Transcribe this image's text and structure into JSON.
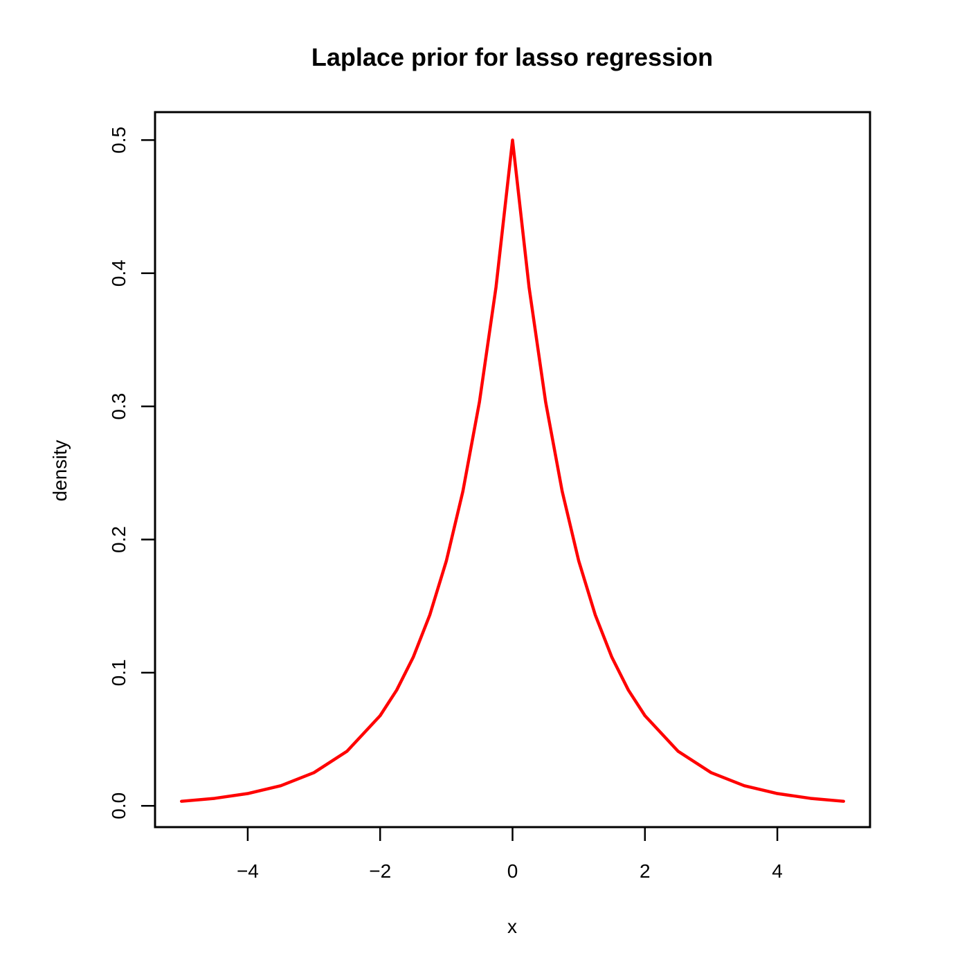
{
  "chart_data": {
    "type": "line",
    "title": "Laplace prior for lasso regression",
    "xlabel": "x",
    "ylabel": "density",
    "xlim": [
      -5.4,
      5.4
    ],
    "ylim": [
      -0.016,
      0.521
    ],
    "x_ticks": [
      -4,
      -2,
      0,
      2,
      4
    ],
    "x_tick_labels": [
      "−4",
      "−2",
      "0",
      "2",
      "4"
    ],
    "y_ticks": [
      0.0,
      0.1,
      0.2,
      0.3,
      0.4,
      0.5
    ],
    "y_tick_labels": [
      "0.0",
      "0.1",
      "0.2",
      "0.3",
      "0.4",
      "0.5"
    ],
    "grid": false,
    "legend": "none",
    "series": [
      {
        "color": "#ff0000",
        "x": [
          -5.0,
          -4.5,
          -4.0,
          -3.5,
          -3.0,
          -2.5,
          -2.0,
          -1.75,
          -1.5,
          -1.25,
          -1.0,
          -0.75,
          -0.5,
          -0.25,
          0.0,
          0.25,
          0.5,
          0.75,
          1.0,
          1.25,
          1.5,
          1.75,
          2.0,
          2.5,
          3.0,
          3.5,
          4.0,
          4.5,
          5.0
        ],
        "y": [
          0.0034,
          0.0056,
          0.0092,
          0.0151,
          0.0249,
          0.041,
          0.0677,
          0.0869,
          0.1116,
          0.1433,
          0.1839,
          0.2362,
          0.3033,
          0.3894,
          0.5,
          0.3894,
          0.3033,
          0.2362,
          0.1839,
          0.1433,
          0.1116,
          0.0869,
          0.0677,
          0.041,
          0.0249,
          0.0151,
          0.0092,
          0.0056,
          0.0034
        ]
      }
    ]
  }
}
